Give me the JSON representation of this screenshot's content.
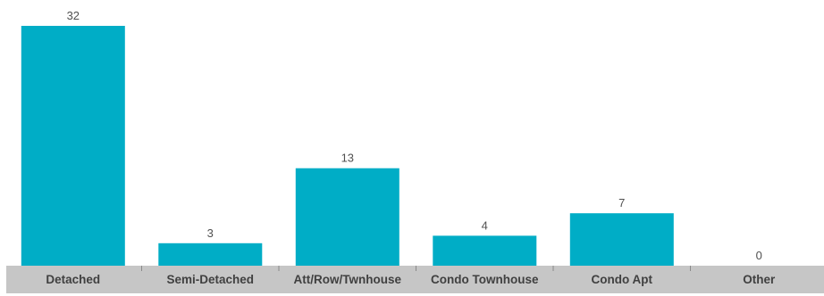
{
  "chart_data": {
    "type": "bar",
    "categories": [
      "Detached",
      "Semi-Detached",
      "Att/Row/Twnhouse",
      "Condo Townhouse",
      "Condo Apt",
      "Other"
    ],
    "values": [
      32,
      3,
      13,
      4,
      7,
      0
    ],
    "title": "",
    "xlabel": "",
    "ylabel": "",
    "ylim": [
      0,
      32
    ],
    "grid": false,
    "show_value_labels": true,
    "colors": {
      "bar": "#00adc6",
      "axis_band": "#c6c6c6",
      "label_text": "#404040"
    }
  }
}
